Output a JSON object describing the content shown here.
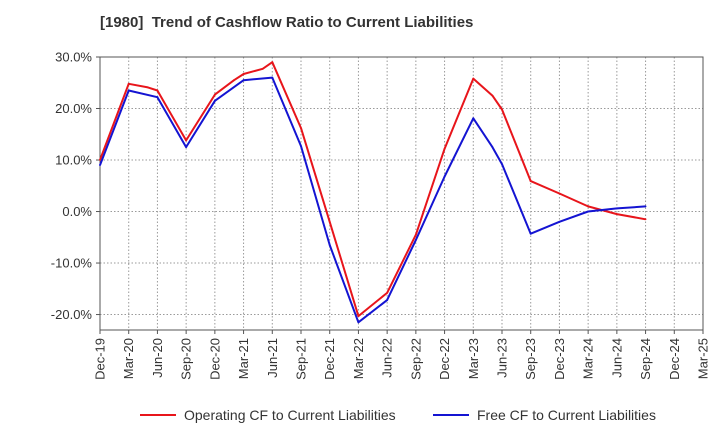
{
  "chart_data": {
    "type": "line",
    "title": "[1980]  Trend of Cashflow Ratio to Current Liabilities",
    "categories": [
      "Dec-19",
      "Mar-20",
      "Jun-20",
      "Sep-20",
      "Dec-20",
      "Mar-21",
      "Jun-21",
      "Sep-21",
      "Dec-21",
      "Mar-22",
      "Jun-22",
      "Sep-22",
      "Dec-22",
      "Mar-23",
      "Jun-23",
      "Sep-23",
      "Dec-23",
      "Mar-24",
      "Jun-24",
      "Sep-24",
      "Dec-24",
      "Mar-25"
    ],
    "x_tick_labels": [
      "Dec-19",
      "Mar-20",
      "Jun-20",
      "Sep-20",
      "Dec-20",
      "Mar-21",
      "Jun-21",
      "Sep-21",
      "Dec-21",
      "Mar-22",
      "Jun-22",
      "Sep-22",
      "Dec-22",
      "Mar-23",
      "Jun-23",
      "Sep-23",
      "Dec-23",
      "Mar-24",
      "Jun-24",
      "Sep-24",
      "Dec-24",
      "Mar-25"
    ],
    "y_tick_labels": [
      "30.0%",
      "20.0%",
      "10.0%",
      "0.0%",
      "-10.0%",
      "-20.0%"
    ],
    "y_ticks": [
      30,
      20,
      10,
      0,
      -10,
      -20
    ],
    "ylim": [
      -23,
      30
    ],
    "grid": true,
    "legend_position": "bottom",
    "series": [
      {
        "name": "Operating CF to Current Liabilities",
        "color": "#e8151b",
        "x": [
          "Dec-19",
          "Mar-20",
          "May-20",
          "Jun-20",
          "Sep-20",
          "Dec-20",
          "Feb-21",
          "Mar-21",
          "May-21",
          "Jun-21",
          "Sep-21",
          "Dec-21",
          "Mar-22",
          "Jun-22",
          "Sep-22",
          "Dec-22",
          "Mar-23",
          "May-23",
          "Jun-23",
          "Sep-23",
          "Dec-23",
          "Mar-24",
          "Jun-24",
          "Sep-24"
        ],
        "values": [
          10.0,
          24.8,
          24.1,
          23.5,
          13.8,
          22.7,
          25.5,
          26.7,
          27.7,
          29.0,
          16.2,
          -2.0,
          -20.3,
          -15.8,
          -4.5,
          12.2,
          25.8,
          22.5,
          19.8,
          5.9,
          3.5,
          1.0,
          -0.5,
          -1.5
        ]
      },
      {
        "name": "Free CF to Current Liabilities",
        "color": "#1414d2",
        "x": [
          "Dec-19",
          "Mar-20",
          "Jun-20",
          "Sep-20",
          "Dec-20",
          "Mar-21",
          "Jun-21",
          "Sep-21",
          "Dec-21",
          "Mar-22",
          "Jun-22",
          "Sep-22",
          "Dec-22",
          "Mar-23",
          "May-23",
          "Jun-23",
          "Sep-23",
          "Dec-23",
          "Mar-24",
          "Jun-24",
          "Sep-24"
        ],
        "values": [
          9.0,
          23.5,
          22.2,
          12.5,
          21.5,
          25.5,
          26.0,
          12.7,
          -6.5,
          -21.5,
          -17.2,
          -5.5,
          6.8,
          18.1,
          12.5,
          9.2,
          -4.3,
          -2.0,
          0.0,
          0.6,
          1.0
        ]
      }
    ]
  }
}
